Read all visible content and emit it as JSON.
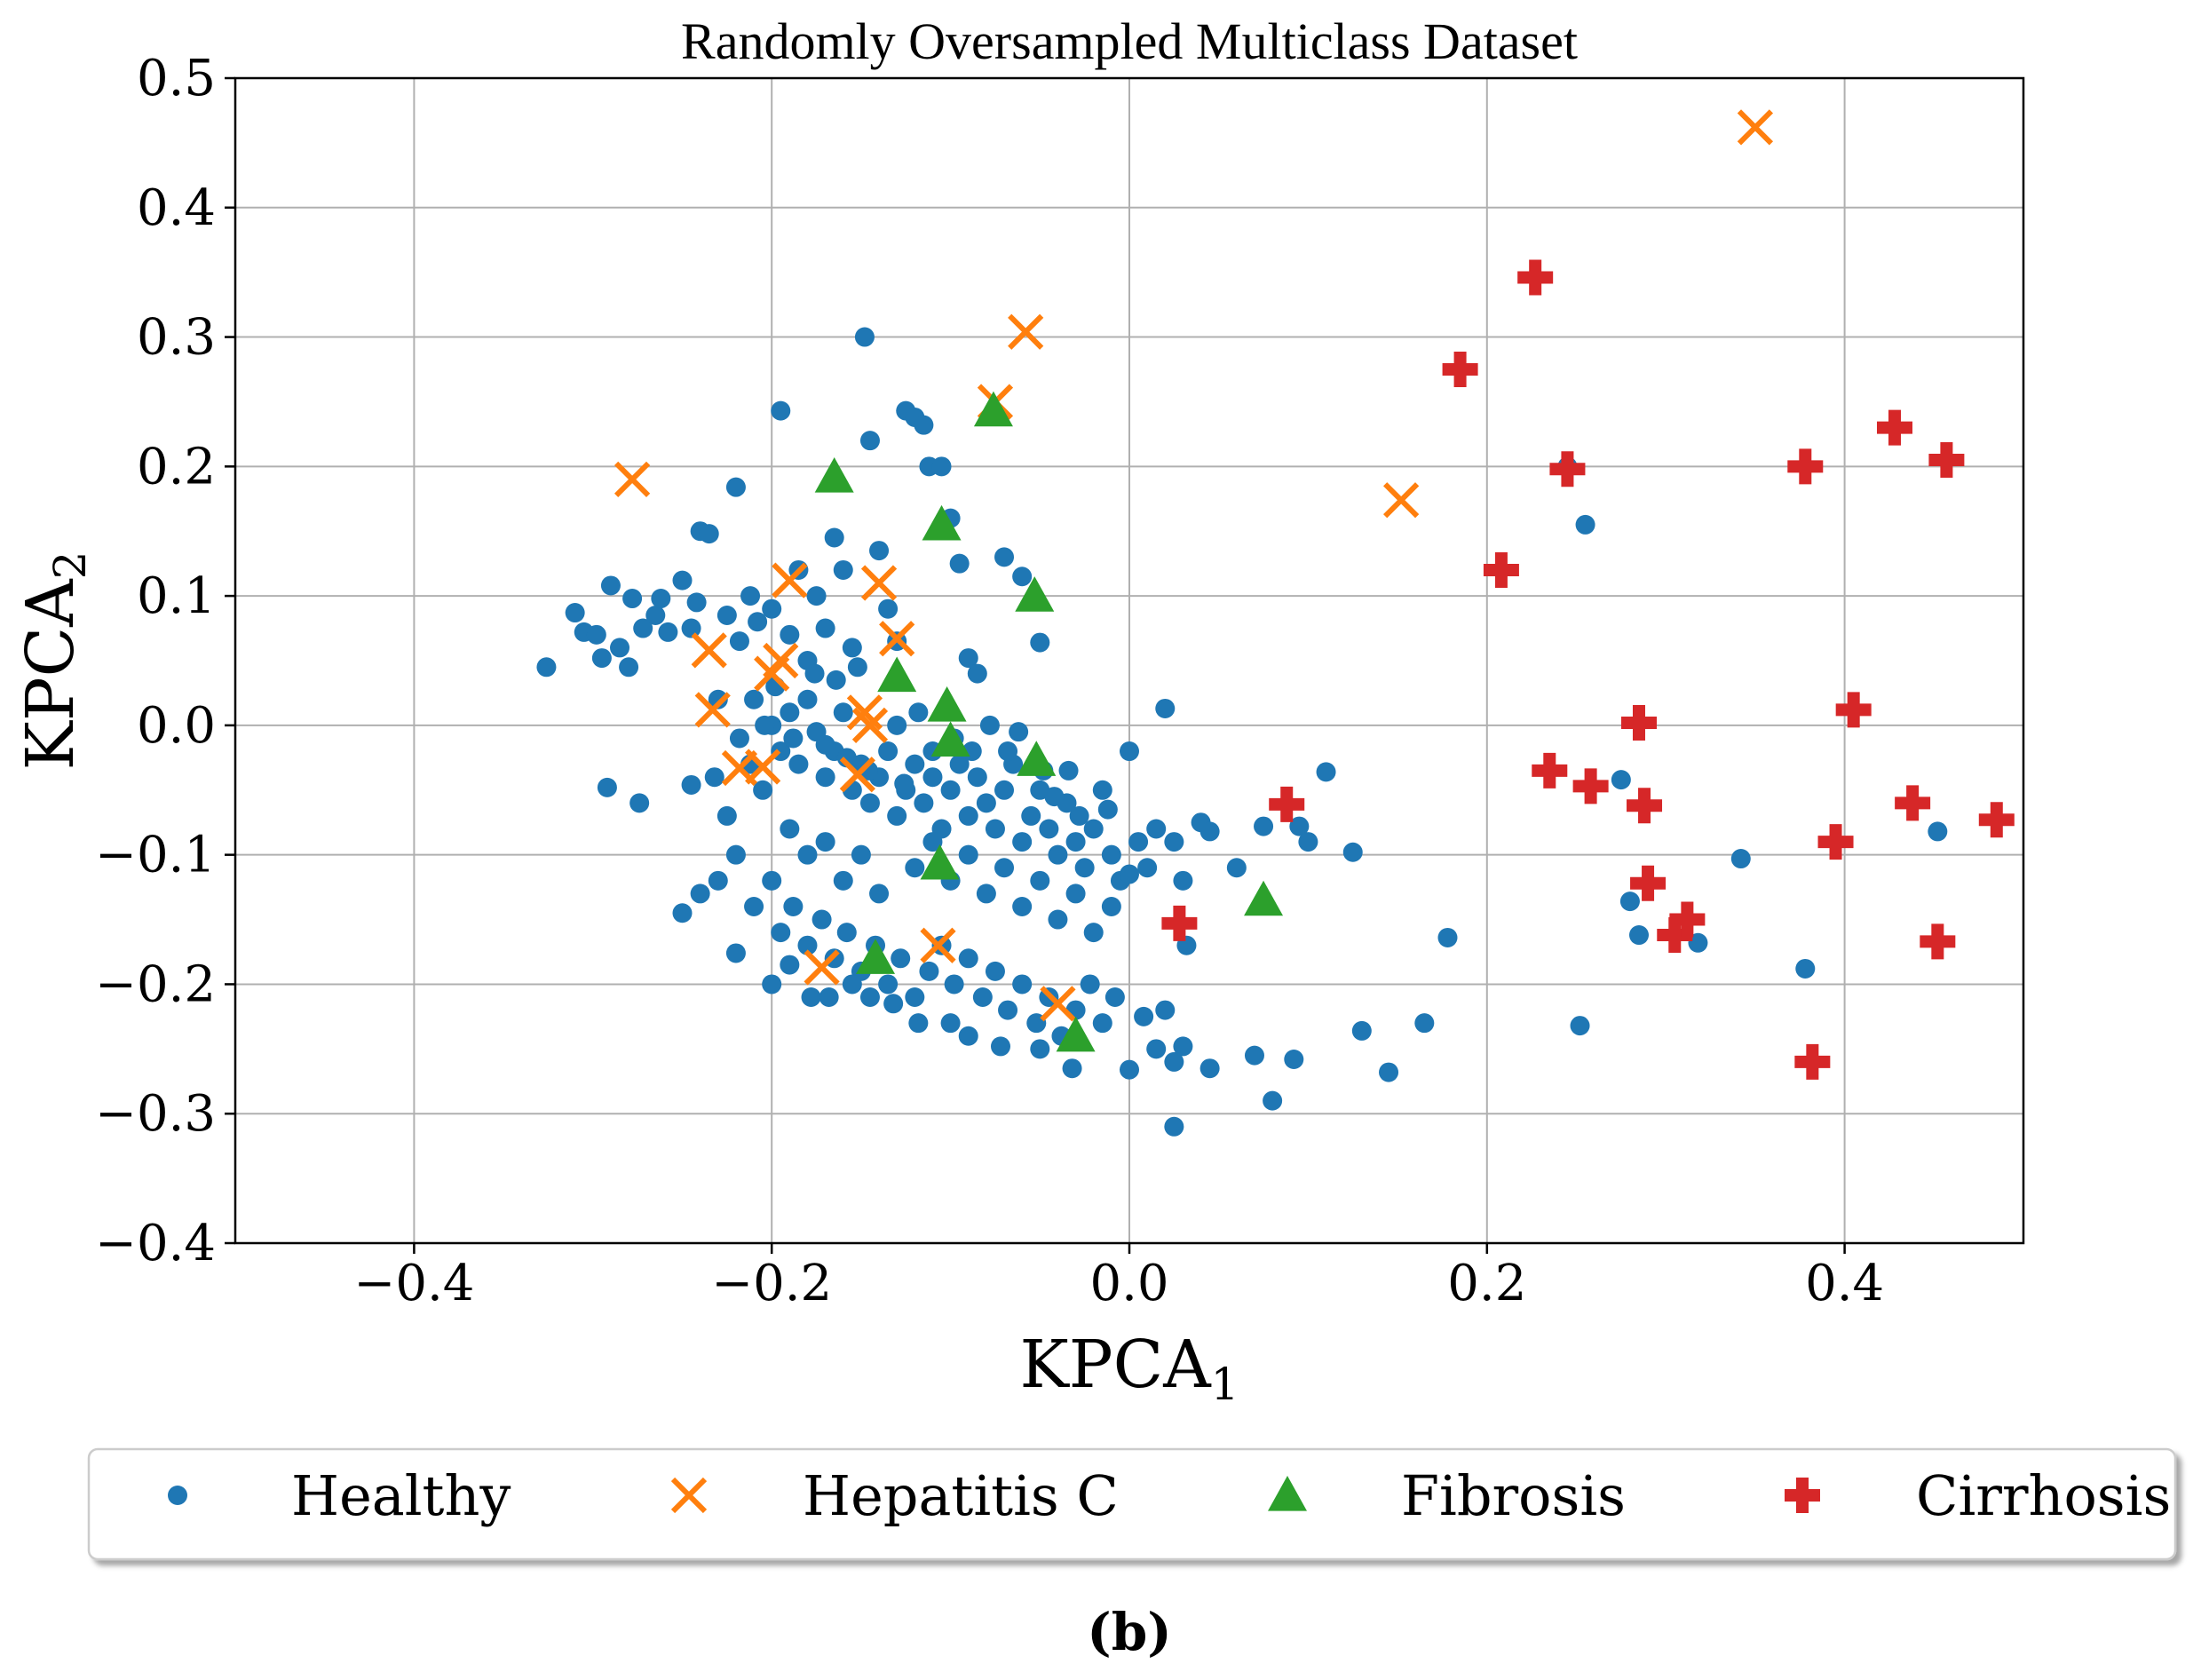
{
  "chart_data": {
    "type": "scatter",
    "title": "Randomly Oversampled Multiclass Dataset",
    "xlabel": "KPCA",
    "xlabel_sub": "1",
    "ylabel": "KPCA",
    "ylabel_sub": "2",
    "xlim": [
      -0.5,
      0.5
    ],
    "ylim": [
      -0.4,
      0.5
    ],
    "xticks": [
      -0.4,
      -0.2,
      0.0,
      0.2,
      0.4
    ],
    "xtick_labels": [
      "−0.4",
      "−0.2",
      "0.0",
      "0.2",
      "0.4"
    ],
    "yticks": [
      -0.4,
      -0.3,
      -0.2,
      -0.1,
      0.0,
      0.1,
      0.2,
      0.3,
      0.4,
      0.5
    ],
    "ytick_labels": [
      "−0.4",
      "−0.3",
      "−0.2",
      "−0.1",
      "0.0",
      "0.1",
      "0.2",
      "0.3",
      "0.4",
      "0.5"
    ],
    "grid": true,
    "legend_position": "below plot",
    "caption": "(b)",
    "series": [
      {
        "name": "Healthy",
        "marker": "circle",
        "color": "#1f77b4",
        "points": [
          [
            -0.326,
            0.045
          ],
          [
            -0.31,
            0.087
          ],
          [
            -0.305,
            0.072
          ],
          [
            -0.298,
            0.07
          ],
          [
            -0.29,
            0.108
          ],
          [
            -0.295,
            0.052
          ],
          [
            -0.285,
            0.06
          ],
          [
            -0.28,
            0.045
          ],
          [
            -0.278,
            0.098
          ],
          [
            -0.272,
            0.075
          ],
          [
            -0.265,
            0.085
          ],
          [
            -0.262,
            0.098
          ],
          [
            -0.258,
            0.072
          ],
          [
            -0.25,
            0.112
          ],
          [
            -0.245,
            0.075
          ],
          [
            -0.242,
            0.095
          ],
          [
            -0.24,
            0.15
          ],
          [
            -0.235,
            0.148
          ],
          [
            -0.23,
            0.02
          ],
          [
            -0.225,
            0.085
          ],
          [
            -0.22,
            0.184
          ],
          [
            -0.218,
            0.065
          ],
          [
            -0.212,
            0.1
          ],
          [
            -0.208,
            0.08
          ],
          [
            -0.2,
            0.09
          ],
          [
            -0.195,
            0.243
          ],
          [
            -0.19,
            0.07
          ],
          [
            -0.185,
            0.12
          ],
          [
            -0.18,
            0.05
          ],
          [
            -0.175,
            0.1
          ],
          [
            -0.17,
            0.075
          ],
          [
            -0.165,
            0.145
          ],
          [
            -0.16,
            0.12
          ],
          [
            -0.155,
            0.06
          ],
          [
            -0.148,
            0.3
          ],
          [
            -0.145,
            0.22
          ],
          [
            -0.14,
            0.135
          ],
          [
            -0.135,
            0.09
          ],
          [
            -0.13,
            0.065
          ],
          [
            -0.125,
            0.243
          ],
          [
            -0.12,
            0.238
          ],
          [
            -0.115,
            0.232
          ],
          [
            -0.112,
            0.2
          ],
          [
            -0.105,
            0.2
          ],
          [
            -0.1,
            0.16
          ],
          [
            -0.095,
            0.125
          ],
          [
            -0.09,
            0.052
          ],
          [
            -0.085,
            0.04
          ],
          [
            -0.07,
            0.13
          ],
          [
            -0.06,
            0.115
          ],
          [
            -0.05,
            0.064
          ],
          [
            -0.292,
            -0.048
          ],
          [
            -0.274,
            -0.06
          ],
          [
            -0.245,
            -0.046
          ],
          [
            -0.232,
            -0.04
          ],
          [
            -0.225,
            -0.07
          ],
          [
            -0.218,
            -0.01
          ],
          [
            -0.212,
            -0.03
          ],
          [
            -0.205,
            -0.05
          ],
          [
            -0.2,
            0.0
          ],
          [
            -0.195,
            -0.02
          ],
          [
            -0.19,
            0.01
          ],
          [
            -0.185,
            -0.03
          ],
          [
            -0.18,
            0.02
          ],
          [
            -0.175,
            -0.005
          ],
          [
            -0.17,
            -0.04
          ],
          [
            -0.165,
            -0.02
          ],
          [
            -0.16,
            0.01
          ],
          [
            -0.155,
            -0.05
          ],
          [
            -0.15,
            -0.03
          ],
          [
            -0.145,
            -0.06
          ],
          [
            -0.14,
            -0.04
          ],
          [
            -0.135,
            -0.02
          ],
          [
            -0.13,
            -0.07
          ],
          [
            -0.125,
            -0.05
          ],
          [
            -0.12,
            -0.03
          ],
          [
            -0.115,
            -0.06
          ],
          [
            -0.11,
            -0.04
          ],
          [
            -0.105,
            -0.08
          ],
          [
            -0.1,
            -0.05
          ],
          [
            -0.095,
            -0.03
          ],
          [
            -0.09,
            -0.07
          ],
          [
            -0.085,
            -0.04
          ],
          [
            -0.08,
            -0.06
          ],
          [
            -0.075,
            -0.08
          ],
          [
            -0.07,
            -0.05
          ],
          [
            -0.065,
            -0.03
          ],
          [
            -0.06,
            -0.09
          ],
          [
            -0.055,
            -0.07
          ],
          [
            -0.05,
            -0.05
          ],
          [
            -0.045,
            -0.08
          ],
          [
            -0.04,
            -0.1
          ],
          [
            -0.035,
            -0.06
          ],
          [
            -0.03,
            -0.09
          ],
          [
            -0.025,
            -0.11
          ],
          [
            -0.02,
            -0.08
          ],
          [
            -0.015,
            -0.05
          ],
          [
            -0.01,
            -0.1
          ],
          [
            -0.005,
            -0.12
          ],
          [
            0.0,
            -0.02
          ],
          [
            0.005,
            -0.09
          ],
          [
            0.01,
            -0.11
          ],
          [
            0.015,
            -0.08
          ],
          [
            0.02,
            0.013
          ],
          [
            0.025,
            -0.09
          ],
          [
            0.03,
            -0.12
          ],
          [
            0.04,
            -0.075
          ],
          [
            0.045,
            -0.082
          ],
          [
            0.06,
            -0.11
          ],
          [
            0.095,
            -0.078
          ],
          [
            0.1,
            -0.09
          ],
          [
            0.11,
            -0.036
          ],
          [
            0.125,
            -0.098
          ],
          [
            -0.19,
            -0.08
          ],
          [
            -0.18,
            -0.1
          ],
          [
            -0.17,
            -0.09
          ],
          [
            -0.16,
            -0.12
          ],
          [
            -0.15,
            -0.1
          ],
          [
            -0.14,
            -0.13
          ],
          [
            -0.12,
            -0.11
          ],
          [
            -0.11,
            -0.09
          ],
          [
            -0.1,
            -0.12
          ],
          [
            -0.09,
            -0.1
          ],
          [
            -0.08,
            -0.13
          ],
          [
            -0.07,
            -0.11
          ],
          [
            -0.06,
            -0.14
          ],
          [
            -0.05,
            -0.12
          ],
          [
            -0.04,
            -0.15
          ],
          [
            -0.03,
            -0.13
          ],
          [
            -0.02,
            -0.16
          ],
          [
            -0.01,
            -0.14
          ],
          [
            0.0,
            -0.115
          ],
          [
            -0.25,
            -0.145
          ],
          [
            -0.24,
            -0.13
          ],
          [
            -0.23,
            -0.12
          ],
          [
            -0.22,
            -0.1
          ],
          [
            -0.21,
            -0.14
          ],
          [
            -0.2,
            -0.12
          ],
          [
            -0.195,
            -0.16
          ],
          [
            -0.188,
            -0.14
          ],
          [
            -0.18,
            -0.17
          ],
          [
            -0.172,
            -0.15
          ],
          [
            -0.165,
            -0.18
          ],
          [
            -0.158,
            -0.16
          ],
          [
            -0.15,
            -0.19
          ],
          [
            -0.142,
            -0.17
          ],
          [
            -0.135,
            -0.2
          ],
          [
            -0.128,
            -0.18
          ],
          [
            -0.12,
            -0.21
          ],
          [
            -0.112,
            -0.19
          ],
          [
            -0.105,
            -0.17
          ],
          [
            -0.098,
            -0.2
          ],
          [
            -0.09,
            -0.18
          ],
          [
            -0.082,
            -0.21
          ],
          [
            -0.075,
            -0.19
          ],
          [
            -0.068,
            -0.22
          ],
          [
            -0.06,
            -0.2
          ],
          [
            -0.052,
            -0.23
          ],
          [
            -0.045,
            -0.21
          ],
          [
            -0.038,
            -0.24
          ],
          [
            -0.03,
            -0.22
          ],
          [
            -0.022,
            -0.2
          ],
          [
            -0.015,
            -0.23
          ],
          [
            -0.008,
            -0.21
          ],
          [
            0.0,
            -0.266
          ],
          [
            0.008,
            -0.225
          ],
          [
            0.015,
            -0.25
          ],
          [
            0.02,
            -0.22
          ],
          [
            0.025,
            -0.26
          ],
          [
            0.03,
            -0.248
          ],
          [
            0.045,
            -0.265
          ],
          [
            0.07,
            -0.255
          ],
          [
            0.08,
            -0.29
          ],
          [
            0.092,
            -0.258
          ],
          [
            0.13,
            -0.236
          ],
          [
            0.145,
            -0.268
          ],
          [
            0.165,
            -0.23
          ],
          [
            -0.2,
            -0.2
          ],
          [
            -0.19,
            -0.185
          ],
          [
            -0.178,
            -0.21
          ],
          [
            -0.168,
            -0.21
          ],
          [
            -0.155,
            -0.2
          ],
          [
            -0.145,
            -0.21
          ],
          [
            -0.132,
            -0.215
          ],
          [
            -0.118,
            -0.23
          ],
          [
            -0.1,
            -0.23
          ],
          [
            -0.09,
            -0.24
          ],
          [
            -0.072,
            -0.248
          ],
          [
            -0.05,
            -0.25
          ],
          [
            -0.032,
            -0.265
          ],
          [
            -0.22,
            -0.176
          ],
          [
            0.025,
            -0.31
          ],
          [
            0.032,
            -0.17
          ],
          [
            0.075,
            -0.078
          ],
          [
            0.178,
            -0.164
          ],
          [
            0.245,
            0.2
          ],
          [
            0.252,
            -0.232
          ],
          [
            0.255,
            0.155
          ],
          [
            0.275,
            -0.042
          ],
          [
            0.28,
            -0.136
          ],
          [
            0.285,
            -0.162
          ],
          [
            0.318,
            -0.168
          ],
          [
            0.342,
            -0.103
          ],
          [
            0.378,
            -0.188
          ],
          [
            0.452,
            -0.082
          ],
          [
            -0.204,
            0.0
          ],
          [
            -0.21,
            0.02
          ],
          [
            -0.198,
            0.03
          ],
          [
            -0.188,
            -0.01
          ],
          [
            -0.176,
            0.04
          ],
          [
            -0.17,
            -0.015
          ],
          [
            -0.164,
            0.035
          ],
          [
            -0.158,
            -0.025
          ],
          [
            -0.152,
            0.045
          ],
          [
            -0.146,
            -0.035
          ],
          [
            -0.13,
            0.0
          ],
          [
            -0.126,
            -0.045
          ],
          [
            -0.118,
            0.01
          ],
          [
            -0.11,
            -0.02
          ],
          [
            -0.098,
            -0.01
          ],
          [
            -0.088,
            -0.02
          ],
          [
            -0.078,
            0.0
          ],
          [
            -0.068,
            -0.02
          ],
          [
            -0.062,
            -0.005
          ],
          [
            -0.048,
            -0.035
          ],
          [
            -0.042,
            -0.055
          ],
          [
            -0.034,
            -0.035
          ],
          [
            -0.028,
            -0.07
          ],
          [
            -0.012,
            -0.065
          ]
        ]
      },
      {
        "name": "Hepatitis C",
        "marker": "x",
        "color": "#ff7f0e",
        "points": [
          [
            -0.278,
            0.19
          ],
          [
            -0.235,
            0.058
          ],
          [
            -0.233,
            0.012
          ],
          [
            -0.218,
            -0.033
          ],
          [
            -0.205,
            -0.032
          ],
          [
            -0.2,
            0.04
          ],
          [
            -0.195,
            0.05
          ],
          [
            -0.19,
            0.112
          ],
          [
            -0.172,
            -0.187
          ],
          [
            -0.148,
            0.01
          ],
          [
            -0.145,
            0.0
          ],
          [
            -0.152,
            -0.038
          ],
          [
            -0.14,
            0.11
          ],
          [
            -0.13,
            0.067
          ],
          [
            -0.107,
            -0.17
          ],
          [
            -0.075,
            0.25
          ],
          [
            -0.058,
            0.304
          ],
          [
            -0.04,
            -0.215
          ],
          [
            0.152,
            0.174
          ],
          [
            0.35,
            0.462
          ]
        ]
      },
      {
        "name": "Fibrosis",
        "marker": "triangle",
        "color": "#2ca02c",
        "points": [
          [
            -0.165,
            0.192
          ],
          [
            -0.142,
            -0.18
          ],
          [
            -0.13,
            0.038
          ],
          [
            -0.105,
            0.155
          ],
          [
            -0.106,
            -0.107
          ],
          [
            -0.102,
            0.015
          ],
          [
            -0.1,
            -0.012
          ],
          [
            -0.076,
            0.243
          ],
          [
            -0.053,
            0.1
          ],
          [
            -0.052,
            -0.027
          ],
          [
            -0.03,
            -0.24
          ],
          [
            0.075,
            -0.135
          ]
        ]
      },
      {
        "name": "Cirrhosis",
        "marker": "plus",
        "color": "#d62728",
        "points": [
          [
            0.028,
            -0.153
          ],
          [
            0.088,
            -0.061
          ],
          [
            0.185,
            0.275
          ],
          [
            0.208,
            0.12
          ],
          [
            0.227,
            0.346
          ],
          [
            0.235,
            -0.035
          ],
          [
            0.245,
            0.198
          ],
          [
            0.258,
            -0.047
          ],
          [
            0.285,
            0.002
          ],
          [
            0.288,
            -0.062
          ],
          [
            0.29,
            -0.122
          ],
          [
            0.305,
            -0.162
          ],
          [
            0.312,
            -0.15
          ],
          [
            0.378,
            0.2
          ],
          [
            0.382,
            -0.26
          ],
          [
            0.395,
            -0.09
          ],
          [
            0.405,
            0.012
          ],
          [
            0.428,
            0.23
          ],
          [
            0.438,
            -0.06
          ],
          [
            0.452,
            -0.167
          ],
          [
            0.457,
            0.205
          ],
          [
            0.485,
            -0.073
          ]
        ]
      }
    ]
  }
}
